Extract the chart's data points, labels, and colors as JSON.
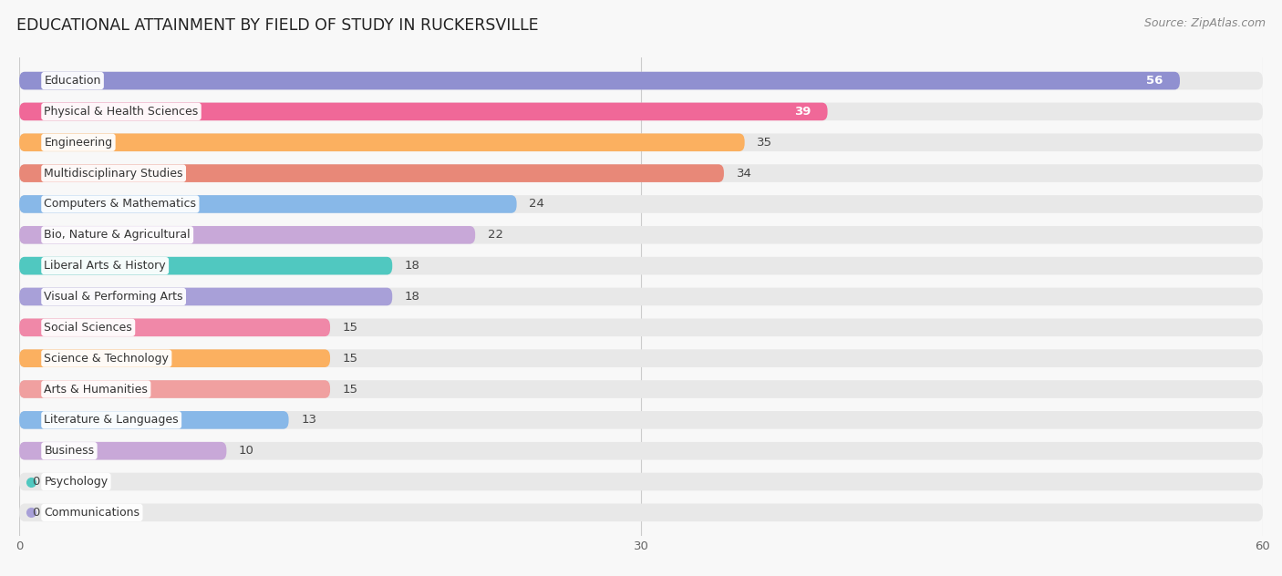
{
  "title": "EDUCATIONAL ATTAINMENT BY FIELD OF STUDY IN RUCKERSVILLE",
  "source": "Source: ZipAtlas.com",
  "categories": [
    "Education",
    "Physical & Health Sciences",
    "Engineering",
    "Multidisciplinary Studies",
    "Computers & Mathematics",
    "Bio, Nature & Agricultural",
    "Liberal Arts & History",
    "Visual & Performing Arts",
    "Social Sciences",
    "Science & Technology",
    "Arts & Humanities",
    "Literature & Languages",
    "Business",
    "Psychology",
    "Communications"
  ],
  "values": [
    56,
    39,
    35,
    34,
    24,
    22,
    18,
    18,
    15,
    15,
    15,
    13,
    10,
    0,
    0
  ],
  "bar_colors": [
    "#9090D0",
    "#F06898",
    "#FBB060",
    "#E88878",
    "#88B8E8",
    "#C8A8D8",
    "#50C8C0",
    "#A8A0D8",
    "#F088A8",
    "#FBB060",
    "#F0A0A0",
    "#88B8E8",
    "#C8A8D8",
    "#50C8C0",
    "#A8A0D8"
  ],
  "xlim": [
    0,
    60
  ],
  "xticks": [
    0,
    30,
    60
  ],
  "background_color": "#f8f8f8",
  "bar_background_color": "#e8e8e8",
  "title_fontsize": 12.5,
  "value_fontsize": 9.5
}
